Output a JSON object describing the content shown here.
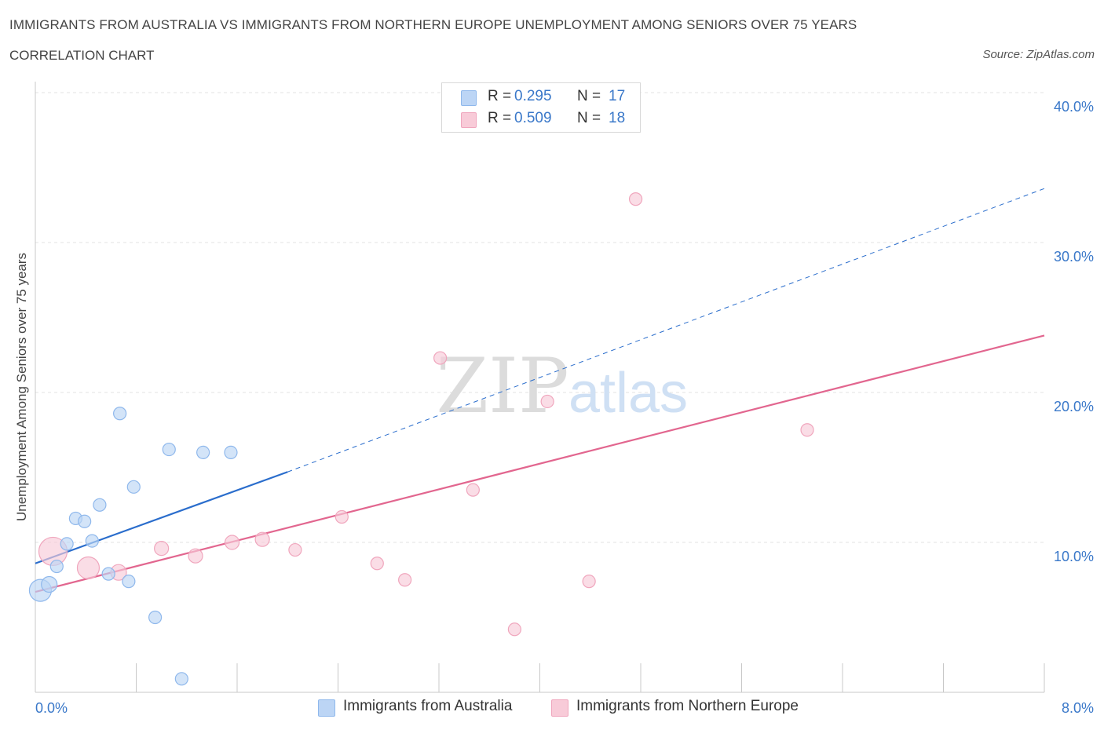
{
  "header": {
    "title": "IMMIGRANTS FROM AUSTRALIA VS IMMIGRANTS FROM NORTHERN EUROPE UNEMPLOYMENT AMONG SENIORS OVER 75 YEARS",
    "subtitle": "CORRELATION CHART",
    "source": "Source: ZipAtlas.com"
  },
  "watermark": {
    "zip": "ZIP",
    "atlas": "atlas"
  },
  "legend": {
    "r_label": "R =",
    "n_label": "N =",
    "series": [
      {
        "r": "0.295",
        "n": "17"
      },
      {
        "r": "0.509",
        "n": "18"
      }
    ]
  },
  "chart_data": {
    "type": "scatter",
    "xlabel": "",
    "ylabel": "Unemployment Among Seniors over 75 years",
    "xlim": [
      0,
      8
    ],
    "ylim": [
      0,
      40
    ],
    "x_tick_labels": [
      "0.0%",
      "8.0%"
    ],
    "y_ticks": [
      10,
      20,
      30,
      40
    ],
    "y_tick_labels": [
      "10.0%",
      "20.0%",
      "30.0%",
      "40.0%"
    ],
    "grid": true,
    "legend_placement": "top-center",
    "series": [
      {
        "name": "Immigrants from Australia",
        "color": "#8fb8ec",
        "fill": "#bcd5f5",
        "trend_color": "#2a6dcc",
        "trend": {
          "x0": 0,
          "y0": 8.6,
          "x1": 2.0,
          "y1": 14.7,
          "dashed_to_x": 8.0,
          "dashed_to_y": 33.6
        },
        "points": [
          {
            "x": 0.04,
            "y": 6.8,
            "r": 14
          },
          {
            "x": 0.11,
            "y": 7.2,
            "r": 10
          },
          {
            "x": 0.17,
            "y": 8.4,
            "r": 8
          },
          {
            "x": 0.25,
            "y": 9.9,
            "r": 8
          },
          {
            "x": 0.32,
            "y": 11.6,
            "r": 8
          },
          {
            "x": 0.39,
            "y": 11.4,
            "r": 8
          },
          {
            "x": 0.45,
            "y": 10.1,
            "r": 8
          },
          {
            "x": 0.51,
            "y": 12.5,
            "r": 8
          },
          {
            "x": 0.58,
            "y": 7.9,
            "r": 8
          },
          {
            "x": 0.67,
            "y": 18.6,
            "r": 8
          },
          {
            "x": 0.74,
            "y": 7.4,
            "r": 8
          },
          {
            "x": 0.78,
            "y": 13.7,
            "r": 8
          },
          {
            "x": 0.95,
            "y": 5.0,
            "r": 8
          },
          {
            "x": 1.06,
            "y": 16.2,
            "r": 8
          },
          {
            "x": 1.16,
            "y": 0.9,
            "r": 8
          },
          {
            "x": 1.33,
            "y": 16.0,
            "r": 8
          },
          {
            "x": 1.55,
            "y": 16.0,
            "r": 8
          }
        ]
      },
      {
        "name": "Immigrants from Northern Europe",
        "color": "#f0a6bd",
        "fill": "#f8cbd8",
        "trend_color": "#e2668f",
        "trend": {
          "x0": 0,
          "y0": 6.7,
          "x1": 8.0,
          "y1": 23.8
        },
        "points": [
          {
            "x": 0.14,
            "y": 9.4,
            "r": 18
          },
          {
            "x": 0.42,
            "y": 8.3,
            "r": 14
          },
          {
            "x": 0.66,
            "y": 8.0,
            "r": 10
          },
          {
            "x": 1.0,
            "y": 9.6,
            "r": 9
          },
          {
            "x": 1.27,
            "y": 9.1,
            "r": 9
          },
          {
            "x": 1.56,
            "y": 10.0,
            "r": 9
          },
          {
            "x": 1.8,
            "y": 10.2,
            "r": 9
          },
          {
            "x": 2.06,
            "y": 9.5,
            "r": 8
          },
          {
            "x": 2.43,
            "y": 11.7,
            "r": 8
          },
          {
            "x": 2.71,
            "y": 8.6,
            "r": 8
          },
          {
            "x": 2.93,
            "y": 7.5,
            "r": 8
          },
          {
            "x": 3.21,
            "y": 22.3,
            "r": 8
          },
          {
            "x": 3.47,
            "y": 13.5,
            "r": 8
          },
          {
            "x": 3.8,
            "y": 4.2,
            "r": 8
          },
          {
            "x": 4.06,
            "y": 19.4,
            "r": 8
          },
          {
            "x": 4.39,
            "y": 7.4,
            "r": 8
          },
          {
            "x": 4.76,
            "y": 32.9,
            "r": 8
          },
          {
            "x": 6.12,
            "y": 17.5,
            "r": 8
          }
        ]
      }
    ]
  }
}
